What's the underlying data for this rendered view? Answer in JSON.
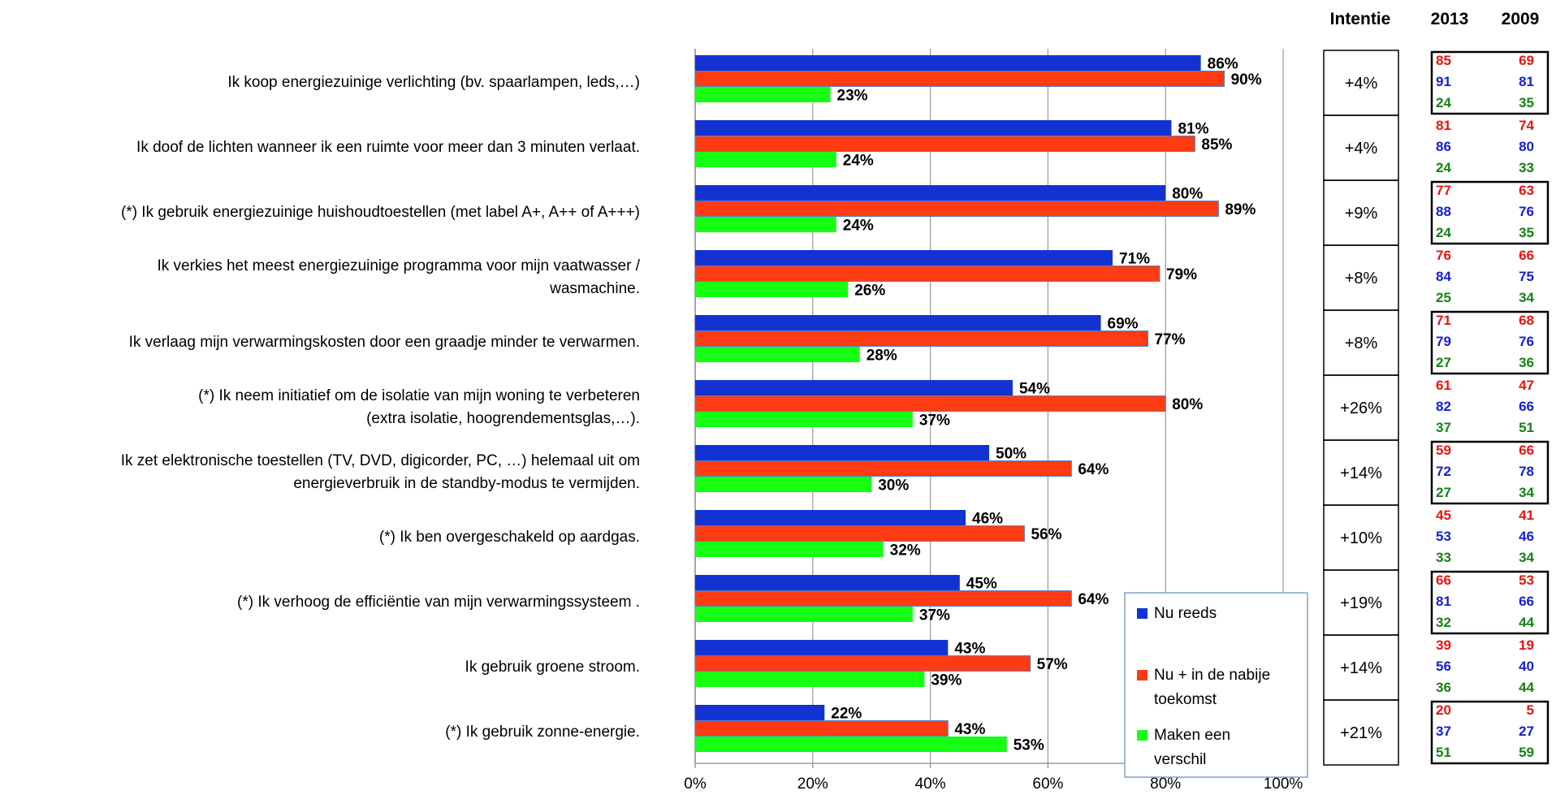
{
  "chart_data": {
    "type": "bar",
    "orientation": "horizontal",
    "categories": [
      [
        "Ik koop energiezuinige verlichting (bv. spaarlampen, leds,…)"
      ],
      [
        "Ik doof de lichten wanneer ik een ruimte voor meer dan 3 minuten verlaat."
      ],
      [
        "(*) Ik gebruik energiezuinige huishoudtoestellen (met label A+, A++ of A+++)"
      ],
      [
        "Ik verkies het meest energiezuinige programma voor mijn vaatwasser /",
        "wasmachine."
      ],
      [
        "Ik verlaag mijn verwarmingskosten door een graadje minder te verwarmen."
      ],
      [
        "(*) Ik neem initiatief om de isolatie van mijn woning te verbeteren",
        "(extra isolatie, hoogrendementsglas,…)."
      ],
      [
        "Ik zet elektronische toestellen (TV, DVD, digicorder, PC, …) helemaal uit om",
        "energieverbruik in de standby-modus te vermijden."
      ],
      [
        "(*) Ik ben overgeschakeld op aardgas."
      ],
      [
        "(*) Ik verhoog de efficiëntie van mijn verwarmingssysteem ."
      ],
      [
        "Ik gebruik groene stroom."
      ],
      [
        "(*) Ik gebruik zonne-energie."
      ]
    ],
    "series": [
      {
        "name": "Nu reeds",
        "color": "#1432D2",
        "values": [
          86,
          81,
          80,
          71,
          69,
          54,
          50,
          46,
          45,
          43,
          22
        ]
      },
      {
        "name": "Nu + in de nabije toekomst",
        "color": "#FF3B14",
        "values": [
          90,
          85,
          89,
          79,
          77,
          80,
          64,
          56,
          64,
          57,
          43
        ]
      },
      {
        "name": "Maken een verschil",
        "color": "#14FF14",
        "values": [
          23,
          24,
          24,
          26,
          28,
          37,
          30,
          32,
          37,
          39,
          53
        ]
      }
    ],
    "value_labels": [
      [
        "86%",
        "90%",
        "23%"
      ],
      [
        "81%",
        "85%",
        "24%"
      ],
      [
        "80%",
        "89%",
        "24%"
      ],
      [
        "71%",
        "79%",
        "26%"
      ],
      [
        "69%",
        "77%",
        "28%"
      ],
      [
        "54%",
        "80%",
        "37%"
      ],
      [
        "50%",
        "64%",
        "30%"
      ],
      [
        "46%",
        "56%",
        "32%"
      ],
      [
        "45%",
        "64%",
        "37%"
      ],
      [
        "43%",
        "57%",
        "39%"
      ],
      [
        "22%",
        "43%",
        "53%"
      ]
    ],
    "xlim": [
      0,
      100
    ],
    "xticks": [
      "0%",
      "20%",
      "40%",
      "60%",
      "80%",
      "100%"
    ],
    "grid": true,
    "legend_lines": [
      [
        "Nu reeds"
      ],
      [
        "Nu + in de nabije",
        "toekomst"
      ],
      [
        "Maken een",
        "verschil"
      ]
    ],
    "legend_position": "bottom-right"
  },
  "side_table": {
    "headers": {
      "intentie": "Intentie",
      "y2013": "2013",
      "y2009": "2009"
    },
    "intentie": [
      "+4%",
      "+4%",
      "+9%",
      "+8%",
      "+8%",
      "+26%",
      "+14%",
      "+10%",
      "+19%",
      "+14%",
      "+21%"
    ],
    "rows": [
      {
        "y2013": [
          "85",
          "91",
          "24"
        ],
        "y2009": [
          "69",
          "81",
          "35"
        ]
      },
      {
        "y2013": [
          "81",
          "86",
          "24"
        ],
        "y2009": [
          "74",
          "80",
          "33"
        ]
      },
      {
        "y2013": [
          "77",
          "88",
          "24"
        ],
        "y2009": [
          "63",
          "76",
          "35"
        ]
      },
      {
        "y2013": [
          "76",
          "84",
          "25"
        ],
        "y2009": [
          "66",
          "75",
          "34"
        ]
      },
      {
        "y2013": [
          "71",
          "79",
          "27"
        ],
        "y2009": [
          "68",
          "76",
          "36"
        ]
      },
      {
        "y2013": [
          "61",
          "82",
          "37"
        ],
        "y2009": [
          "47",
          "66",
          "51"
        ]
      },
      {
        "y2013": [
          "59",
          "72",
          "27"
        ],
        "y2009": [
          "66",
          "78",
          "34"
        ]
      },
      {
        "y2013": [
          "45",
          "53",
          "33"
        ],
        "y2009": [
          "41",
          "46",
          "34"
        ]
      },
      {
        "y2013": [
          "66",
          "81",
          "32"
        ],
        "y2009": [
          "53",
          "66",
          "44"
        ]
      },
      {
        "y2013": [
          "39",
          "56",
          "36"
        ],
        "y2009": [
          "19",
          "40",
          "44"
        ]
      },
      {
        "y2013": [
          "20",
          "37",
          "51"
        ],
        "y2009": [
          "5",
          "27",
          "59"
        ]
      }
    ],
    "number_colors": [
      "#E8140F",
      "#1420D2",
      "#148214"
    ]
  }
}
